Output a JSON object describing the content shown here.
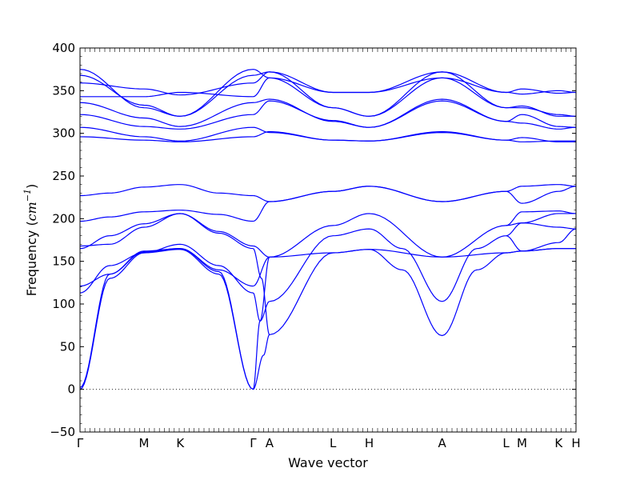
{
  "chart_data": {
    "type": "line",
    "title": "",
    "xlabel": "Wave vector",
    "ylabel": "Frequency",
    "ylabel_unit_base": "cm",
    "ylabel_unit_exp": "−1",
    "ylim": [
      -50,
      400
    ],
    "yticks": [
      -50,
      0,
      50,
      100,
      150,
      200,
      250,
      300,
      350,
      400
    ],
    "xlim": [
      0,
      1
    ],
    "grid": false,
    "legend": "none",
    "line_color": "#0000ff",
    "zero_line": {
      "y": 0,
      "style": "dotted",
      "color": "#000000"
    },
    "high_symmetry_points": [
      {
        "label": "Γ",
        "x": 0.0
      },
      {
        "label": "M",
        "x": 0.129
      },
      {
        "label": "K",
        "x": 0.202
      },
      {
        "label": "Γ",
        "x": 0.349
      },
      {
        "label": "A",
        "x": 0.382
      },
      {
        "label": "L",
        "x": 0.51
      },
      {
        "label": "H",
        "x": 0.583
      },
      {
        "label": "A",
        "x": 0.73
      },
      {
        "label": "L",
        "x": 0.859
      },
      {
        "label": "M",
        "x": 0.891
      },
      {
        "label": "K",
        "x": 0.965
      },
      {
        "label": "H",
        "x": 1.0
      }
    ],
    "series": [
      {
        "x": [
          0,
          0.06,
          0.129,
          0.202,
          0.28,
          0.349
        ],
        "y": [
          0,
          130,
          160,
          164,
          135,
          0
        ]
      },
      {
        "x": [
          0.349,
          0.363,
          0.382
        ],
        "y": [
          0,
          80,
          155
        ]
      },
      {
        "x": [
          0.382,
          0.51,
          0.583,
          0.73,
          0.859,
          0.891,
          0.965,
          1.0
        ],
        "y": [
          155,
          160,
          164,
          155,
          160,
          162,
          165,
          165
        ]
      },
      {
        "x": [
          0,
          0.06,
          0.129,
          0.202,
          0.28,
          0.349
        ],
        "y": [
          2,
          135,
          161,
          165,
          138,
          0
        ]
      },
      {
        "x": [
          0.349,
          0.37,
          0.382
        ],
        "y": [
          0,
          40,
          64
        ]
      },
      {
        "x": [
          0.382,
          0.51,
          0.583,
          0.65,
          0.73,
          0.8,
          0.859,
          0.891,
          0.965,
          1.0
        ],
        "y": [
          64,
          160,
          164,
          140,
          63,
          140,
          160,
          162,
          165,
          165
        ]
      },
      {
        "x": [
          0,
          0.06,
          0.129,
          0.202,
          0.28,
          0.349
        ],
        "y": [
          113,
          145,
          160,
          170,
          145,
          113
        ]
      },
      {
        "x": [
          0.349,
          0.363,
          0.382
        ],
        "y": [
          113,
          80,
          103
        ]
      },
      {
        "x": [
          0.382,
          0.51,
          0.583,
          0.65,
          0.73,
          0.8,
          0.859,
          0.891,
          0.965,
          1.0
        ],
        "y": [
          103,
          180,
          188,
          165,
          103,
          165,
          180,
          195,
          190,
          188
        ]
      },
      {
        "x": [
          0,
          0.06,
          0.129,
          0.202,
          0.28,
          0.349
        ],
        "y": [
          121,
          135,
          162,
          165,
          140,
          121
        ]
      },
      {
        "x": [
          0.349,
          0.382
        ],
        "y": [
          121,
          155
        ]
      },
      {
        "x": [
          0.382,
          0.51,
          0.583,
          0.73,
          0.859,
          0.891,
          0.965,
          1.0
        ],
        "y": [
          155,
          192,
          206,
          155,
          192,
          195,
          206,
          206
        ]
      },
      {
        "x": [
          0,
          0.06,
          0.129,
          0.202,
          0.28,
          0.349
        ],
        "y": [
          168,
          170,
          190,
          206,
          185,
          168
        ]
      },
      {
        "x": [
          0.349,
          0.382
        ],
        "y": [
          168,
          155
        ]
      },
      {
        "x": [
          0,
          0.06,
          0.129,
          0.202,
          0.28,
          0.349
        ],
        "y": [
          165,
          180,
          194,
          206,
          183,
          165
        ]
      },
      {
        "x": [
          0.349,
          0.366,
          0.382
        ],
        "y": [
          165,
          130,
          64
        ]
      },
      {
        "x": [
          0,
          0.06,
          0.129,
          0.202,
          0.28,
          0.349
        ],
        "y": [
          197,
          202,
          208,
          210,
          205,
          197
        ]
      },
      {
        "x": [
          0.349,
          0.382
        ],
        "y": [
          197,
          220
        ]
      },
      {
        "x": [
          0.382,
          0.51,
          0.583,
          0.73,
          0.859,
          0.891,
          0.965,
          1.0
        ],
        "y": [
          220,
          232,
          238,
          220,
          232,
          218,
          232,
          238
        ]
      },
      {
        "x": [
          0,
          0.06,
          0.129,
          0.202,
          0.28,
          0.349
        ],
        "y": [
          227,
          230,
          237,
          240,
          230,
          227
        ]
      },
      {
        "x": [
          0.349,
          0.382
        ],
        "y": [
          227,
          220
        ]
      },
      {
        "x": [
          0.382,
          0.51,
          0.583,
          0.73,
          0.859,
          0.891,
          0.965,
          1.0
        ],
        "y": [
          220,
          232,
          238,
          220,
          232,
          238,
          240,
          238
        ]
      },
      {
        "x": [
          0.859,
          0.891,
          0.965,
          1.0
        ],
        "y": [
          180,
          162,
          172,
          188
        ]
      },
      {
        "x": [
          0.859,
          0.891,
          0.965,
          1.0
        ],
        "y": [
          192,
          208,
          209,
          206
        ]
      },
      {
        "x": [
          0,
          0.129,
          0.202,
          0.349,
          0.382,
          0.51,
          0.583,
          0.73,
          0.859,
          0.891,
          0.965,
          1.0
        ],
        "y": [
          296,
          292,
          290,
          296,
          302,
          292,
          291,
          302,
          292,
          295,
          290,
          290
        ]
      },
      {
        "x": [
          0,
          0.129,
          0.202,
          0.349,
          0.382,
          0.51,
          0.583,
          0.73,
          0.859,
          0.891,
          0.965,
          1.0
        ],
        "y": [
          307,
          296,
          291,
          307,
          301,
          292,
          291,
          301,
          292,
          290,
          291,
          291
        ]
      },
      {
        "x": [
          0,
          0.129,
          0.202,
          0.349,
          0.382,
          0.51,
          0.583,
          0.73,
          0.859,
          0.891,
          0.965,
          1.0
        ],
        "y": [
          322,
          308,
          305,
          322,
          338,
          315,
          307,
          338,
          314,
          322,
          308,
          307
        ]
      },
      {
        "x": [
          0,
          0.129,
          0.202,
          0.349,
          0.382,
          0.51,
          0.583,
          0.73,
          0.859,
          0.891,
          0.965,
          1.0
        ],
        "y": [
          336,
          318,
          308,
          336,
          340,
          314,
          307,
          340,
          314,
          312,
          305,
          307
        ]
      },
      {
        "x": [
          0,
          0.129,
          0.202,
          0.349,
          0.382,
          0.51,
          0.583,
          0.73,
          0.859,
          0.891,
          0.965,
          1.0
        ],
        "y": [
          343,
          343,
          348,
          343,
          365,
          330,
          320,
          365,
          330,
          332,
          320,
          320
        ]
      },
      {
        "x": [
          0,
          0.129,
          0.202,
          0.349,
          0.382,
          0.51,
          0.583,
          0.73,
          0.859,
          0.891,
          0.965,
          1.0
        ],
        "y": [
          359,
          352,
          345,
          359,
          372,
          348,
          348,
          372,
          348,
          346,
          350,
          348
        ]
      },
      {
        "x": [
          0,
          0.129,
          0.202,
          0.349,
          0.382,
          0.51,
          0.583,
          0.73,
          0.859,
          0.891,
          0.965,
          1.0
        ],
        "y": [
          368,
          333,
          320,
          368,
          372,
          330,
          320,
          372,
          330,
          330,
          322,
          320
        ]
      },
      {
        "x": [
          0,
          0.129,
          0.202,
          0.349,
          0.382,
          0.51,
          0.583,
          0.73,
          0.859,
          0.891,
          0.965,
          1.0
        ],
        "y": [
          375,
          330,
          320,
          375,
          365,
          348,
          348,
          365,
          348,
          352,
          347,
          348
        ]
      }
    ]
  }
}
